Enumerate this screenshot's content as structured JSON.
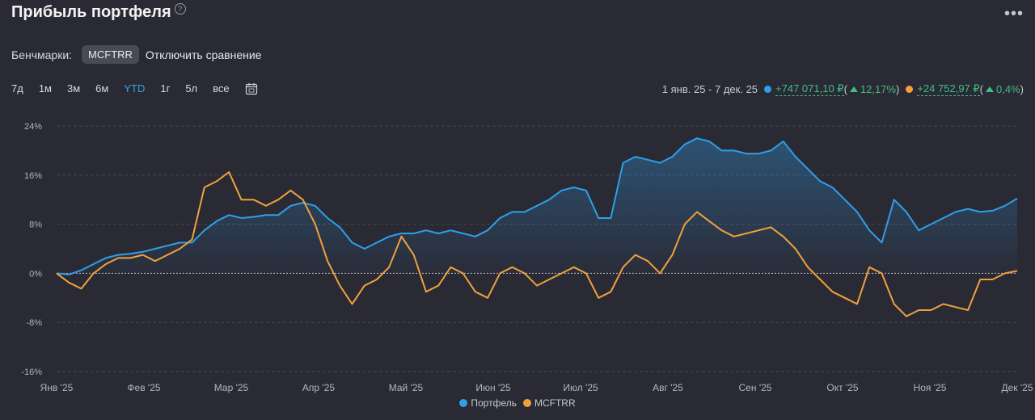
{
  "header": {
    "title": "Прибыль портфеля",
    "help_icon": "?",
    "more_icon": "•••"
  },
  "benchmarks": {
    "label": "Бенчмарки:",
    "chip": "MCFTRR",
    "disable": "Отключить сравнение"
  },
  "periods": [
    "7д",
    "1м",
    "3м",
    "6м",
    "YTD",
    "1г",
    "5л",
    "все"
  ],
  "active_period": "YTD",
  "calendar_icon": "calendar-icon",
  "summary": {
    "range": "1 янв. 25 - 7 дек. 25",
    "portfolio_value": "+747 071,10 ₽",
    "portfolio_pct": "12,17%",
    "bench_value": "+24 752,97 ₽",
    "bench_pct": "0,4%",
    "open": "(",
    "close": ")"
  },
  "colors": {
    "portfolio": "#2f9fe8",
    "benchmark": "#f0a13c",
    "positive": "#3fbf7f",
    "active": "#3aa0e8"
  },
  "chart_data": {
    "type": "line",
    "y_ticks": [
      "24%",
      "16%",
      "8%",
      "0%",
      "-8%",
      "-16%"
    ],
    "ylim": [
      -16,
      24
    ],
    "x_labels": [
      "Янв '25",
      "Фев '25",
      "Мар '25",
      "Апр '25",
      "Май '25",
      "Июн '25",
      "Июл '25",
      "Авг '25",
      "Сен '25",
      "Окт '25",
      "Ноя '25",
      "Дек '25"
    ],
    "grid": true,
    "legend": "bottom",
    "series": [
      {
        "name": "Портфель",
        "color": "#2f9fe8",
        "values": [
          0,
          -0.2,
          0.5,
          1.5,
          2.5,
          3,
          3.2,
          3.5,
          4,
          4.5,
          5,
          5,
          7,
          8.5,
          9.5,
          9,
          9.2,
          9.5,
          9.5,
          11,
          11.5,
          11,
          9,
          7.5,
          5,
          4,
          5,
          6,
          6.5,
          6.5,
          7,
          6.5,
          7,
          6.5,
          6,
          7,
          9,
          10,
          10,
          11,
          12,
          13.5,
          14,
          13.5,
          9,
          9,
          18,
          19,
          18.5,
          18,
          19,
          21,
          22,
          21.5,
          20,
          20,
          19.5,
          19.5,
          20,
          21.5,
          19,
          17,
          15,
          14,
          12,
          10,
          7,
          5,
          12,
          10,
          7,
          8,
          9,
          10,
          10.5,
          10,
          10.2,
          11,
          12.2
        ]
      },
      {
        "name": "MCFTRR",
        "color": "#f0a13c",
        "values": [
          0,
          -1.5,
          -2.5,
          0,
          1.5,
          2.5,
          2.5,
          3,
          2,
          3,
          4,
          5.5,
          14,
          15,
          16.5,
          12,
          12,
          11,
          12,
          13.5,
          12,
          8,
          2,
          -2,
          -5,
          -2,
          -1,
          1,
          6,
          3,
          -3,
          -2,
          1,
          0,
          -3,
          -4,
          0,
          1,
          0,
          -2,
          -1,
          0,
          1,
          0,
          -4,
          -3,
          1,
          3,
          2,
          0,
          3,
          8,
          10,
          8.5,
          7,
          6,
          6.5,
          7,
          7.5,
          6,
          4,
          1,
          -1,
          -3,
          -4,
          -5,
          1,
          0,
          -5,
          -7,
          -6,
          -6,
          -5,
          -5.5,
          -6,
          -1,
          -1,
          0,
          0.4
        ]
      }
    ]
  },
  "legend": {
    "portfolio": "Портфель",
    "benchmark": "MCFTRR"
  }
}
